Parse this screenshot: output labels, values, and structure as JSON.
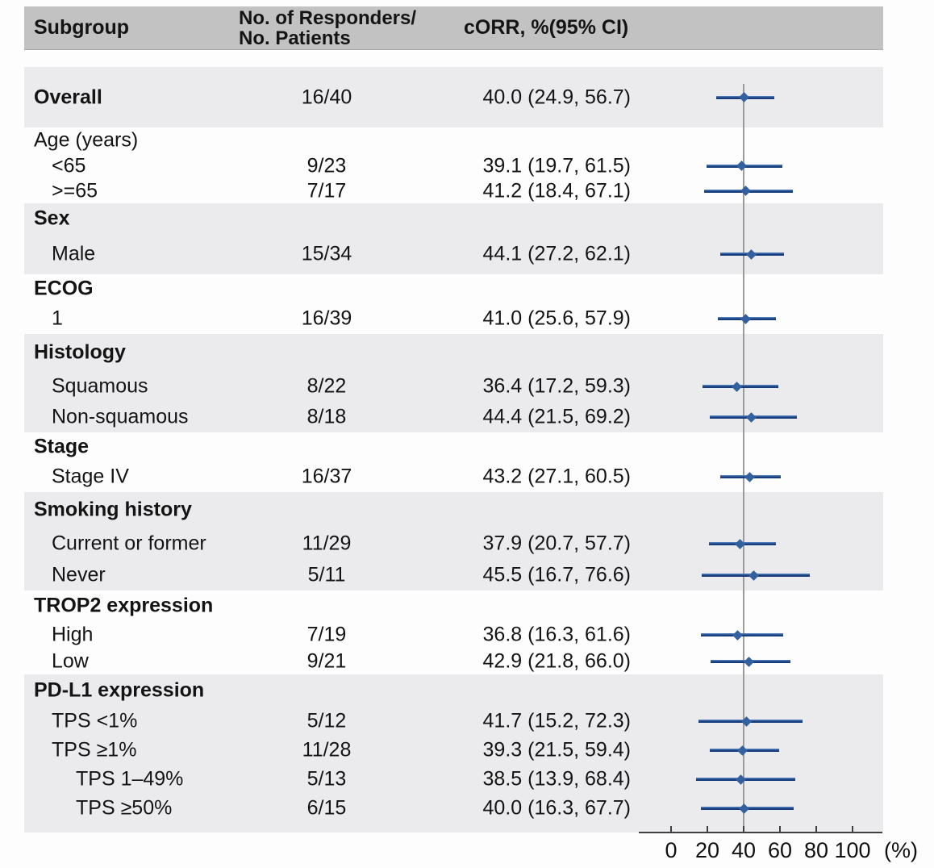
{
  "figure": {
    "columns": {
      "subgroup": "Subgroup",
      "responders_line1": "No. of Responders/",
      "responders_line2": "No. Patients",
      "corr": "cORR, %(95% CI)"
    },
    "axis": {
      "ticks": [
        "0",
        "20",
        "40",
        "60",
        "80",
        "100"
      ],
      "tick_values": [
        0,
        20,
        40,
        60,
        80,
        100
      ],
      "unit": "(%)",
      "min": 0,
      "max": 100,
      "ref_line": 40
    },
    "colors": {
      "header_bg": "#c2c2c2",
      "band_gray": "#ebebed",
      "ci_line_dark": "#173d7c",
      "ci_line_light": "#4d79b8",
      "marker": "#33619f",
      "ref_line": "#9b9b9b",
      "axis": "#3f3f3f",
      "text": "#141414"
    }
  },
  "chart_data": {
    "type": "forest",
    "title": "",
    "xlabel": "(%)",
    "xlim": [
      0,
      100
    ],
    "grid": false,
    "legend": false,
    "reference_line_x": 40,
    "value_note": "cORR, % (95% CI)",
    "groups": [
      {
        "shade": "gray",
        "rows": [
          {
            "label": "Overall",
            "bold": true,
            "indent": 0,
            "responders": "16/40",
            "corr": "40.0 (24.9, 56.7)",
            "est": 40.0,
            "ci": [
              24.9,
              56.7
            ]
          }
        ]
      },
      {
        "shade": "white",
        "rows": [
          {
            "label": "Age (years)",
            "bold": false,
            "indent": 0
          },
          {
            "label": "<65",
            "indent": 1,
            "responders": "9/23",
            "corr": "39.1 (19.7, 61.5)",
            "est": 39.1,
            "ci": [
              19.7,
              61.5
            ]
          },
          {
            "label": ">=65",
            "indent": 1,
            "responders": "7/17",
            "corr": "41.2 (18.4, 67.1)",
            "est": 41.2,
            "ci": [
              18.4,
              67.1
            ]
          }
        ]
      },
      {
        "shade": "gray",
        "rows": [
          {
            "label": "Sex",
            "bold": true,
            "indent": 0
          },
          {
            "label": "Male",
            "indent": 1,
            "responders": "15/34",
            "corr": "44.1 (27.2, 62.1)",
            "est": 44.1,
            "ci": [
              27.2,
              62.1
            ]
          }
        ]
      },
      {
        "shade": "white",
        "rows": [
          {
            "label": "ECOG",
            "bold": true,
            "indent": 0
          },
          {
            "label": "1",
            "indent": 1,
            "responders": "16/39",
            "corr": "41.0 (25.6, 57.9)",
            "est": 41.0,
            "ci": [
              25.6,
              57.9
            ]
          }
        ]
      },
      {
        "shade": "gray",
        "rows": [
          {
            "label": "Histology",
            "bold": true,
            "indent": 0
          },
          {
            "label": "Squamous",
            "indent": 1,
            "responders": "8/22",
            "corr": "36.4 (17.2, 59.3)",
            "est": 36.4,
            "ci": [
              17.2,
              59.3
            ]
          },
          {
            "label": "Non-squamous",
            "indent": 1,
            "responders": "8/18",
            "corr": "44.4 (21.5, 69.2)",
            "est": 44.4,
            "ci": [
              21.5,
              69.2
            ]
          }
        ]
      },
      {
        "shade": "white",
        "rows": [
          {
            "label": "Stage",
            "bold": true,
            "indent": 0
          },
          {
            "label": "Stage IV",
            "indent": 1,
            "responders": "16/37",
            "corr": "43.2 (27.1, 60.5)",
            "est": 43.2,
            "ci": [
              27.1,
              60.5
            ]
          }
        ]
      },
      {
        "shade": "gray",
        "rows": [
          {
            "label": "Smoking history",
            "bold": true,
            "indent": 0
          },
          {
            "label": "Current or former",
            "indent": 1,
            "responders": "11/29",
            "corr": "37.9 (20.7, 57.7)",
            "est": 37.9,
            "ci": [
              20.7,
              57.7
            ]
          },
          {
            "label": "Never",
            "indent": 1,
            "responders": "5/11",
            "corr": "45.5 (16.7, 76.6)",
            "est": 45.5,
            "ci": [
              16.7,
              76.6
            ]
          }
        ]
      },
      {
        "shade": "white",
        "rows": [
          {
            "label": "TROP2 expression",
            "bold": true,
            "indent": 0
          },
          {
            "label": "High",
            "indent": 1,
            "responders": "7/19",
            "corr": "36.8 (16.3, 61.6)",
            "est": 36.8,
            "ci": [
              16.3,
              61.6
            ]
          },
          {
            "label": "Low",
            "indent": 1,
            "responders": "9/21",
            "corr": "42.9 (21.8, 66.0)",
            "est": 42.9,
            "ci": [
              21.8,
              66.0
            ]
          }
        ]
      },
      {
        "shade": "gray",
        "rows": [
          {
            "label": "PD-L1 expression",
            "bold": true,
            "indent": 0
          },
          {
            "label": "TPS <1%",
            "indent": 1,
            "responders": "5/12",
            "corr": "41.7 (15.2, 72.3)",
            "est": 41.7,
            "ci": [
              15.2,
              72.3
            ]
          },
          {
            "label": "TPS ≥1%",
            "indent": 1,
            "responders": "11/28",
            "corr": "39.3 (21.5, 59.4)",
            "est": 39.3,
            "ci": [
              21.5,
              59.4
            ]
          },
          {
            "label": "TPS 1–49%",
            "indent": 2,
            "responders": "5/13",
            "corr": "38.5 (13.9, 68.4)",
            "est": 38.5,
            "ci": [
              13.9,
              68.4
            ]
          },
          {
            "label": "TPS ≥50%",
            "indent": 2,
            "responders": "6/15",
            "corr": "40.0 (16.3, 67.7)",
            "est": 40.0,
            "ci": [
              16.3,
              67.7
            ]
          }
        ]
      }
    ]
  }
}
